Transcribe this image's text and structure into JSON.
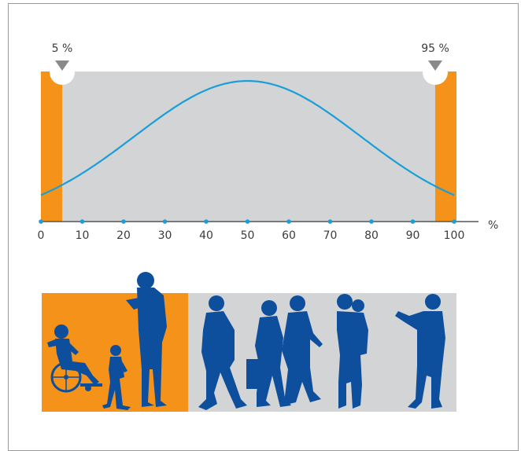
{
  "chart_data": {
    "type": "area",
    "x_ticks": [
      "0",
      "10",
      "20",
      "30",
      "40",
      "50",
      "60",
      "70",
      "80",
      "90",
      "100"
    ],
    "x_unit": "%",
    "lower_marker": "5 %",
    "upper_marker": "95 %",
    "lower_percentile": 5,
    "upper_percentile": 95,
    "distribution": "normal",
    "mean": 50
  },
  "colors": {
    "orange": "#f4921a",
    "gray": "#d3d4d6",
    "curve": "#1a9ed8",
    "figures": "#0d4f9c",
    "axis": "#555555"
  },
  "icons": {
    "lower_marker": "down-triangle-icon",
    "upper_marker": "down-triangle-icon",
    "people": [
      "wheelchair-user-icon",
      "child-icon",
      "tall-man-icon",
      "heavy-walker-icon",
      "woman-with-bag-icon",
      "elderly-couple-icon",
      "woman-carrying-child-icon",
      "man-taking-photo-icon"
    ]
  }
}
